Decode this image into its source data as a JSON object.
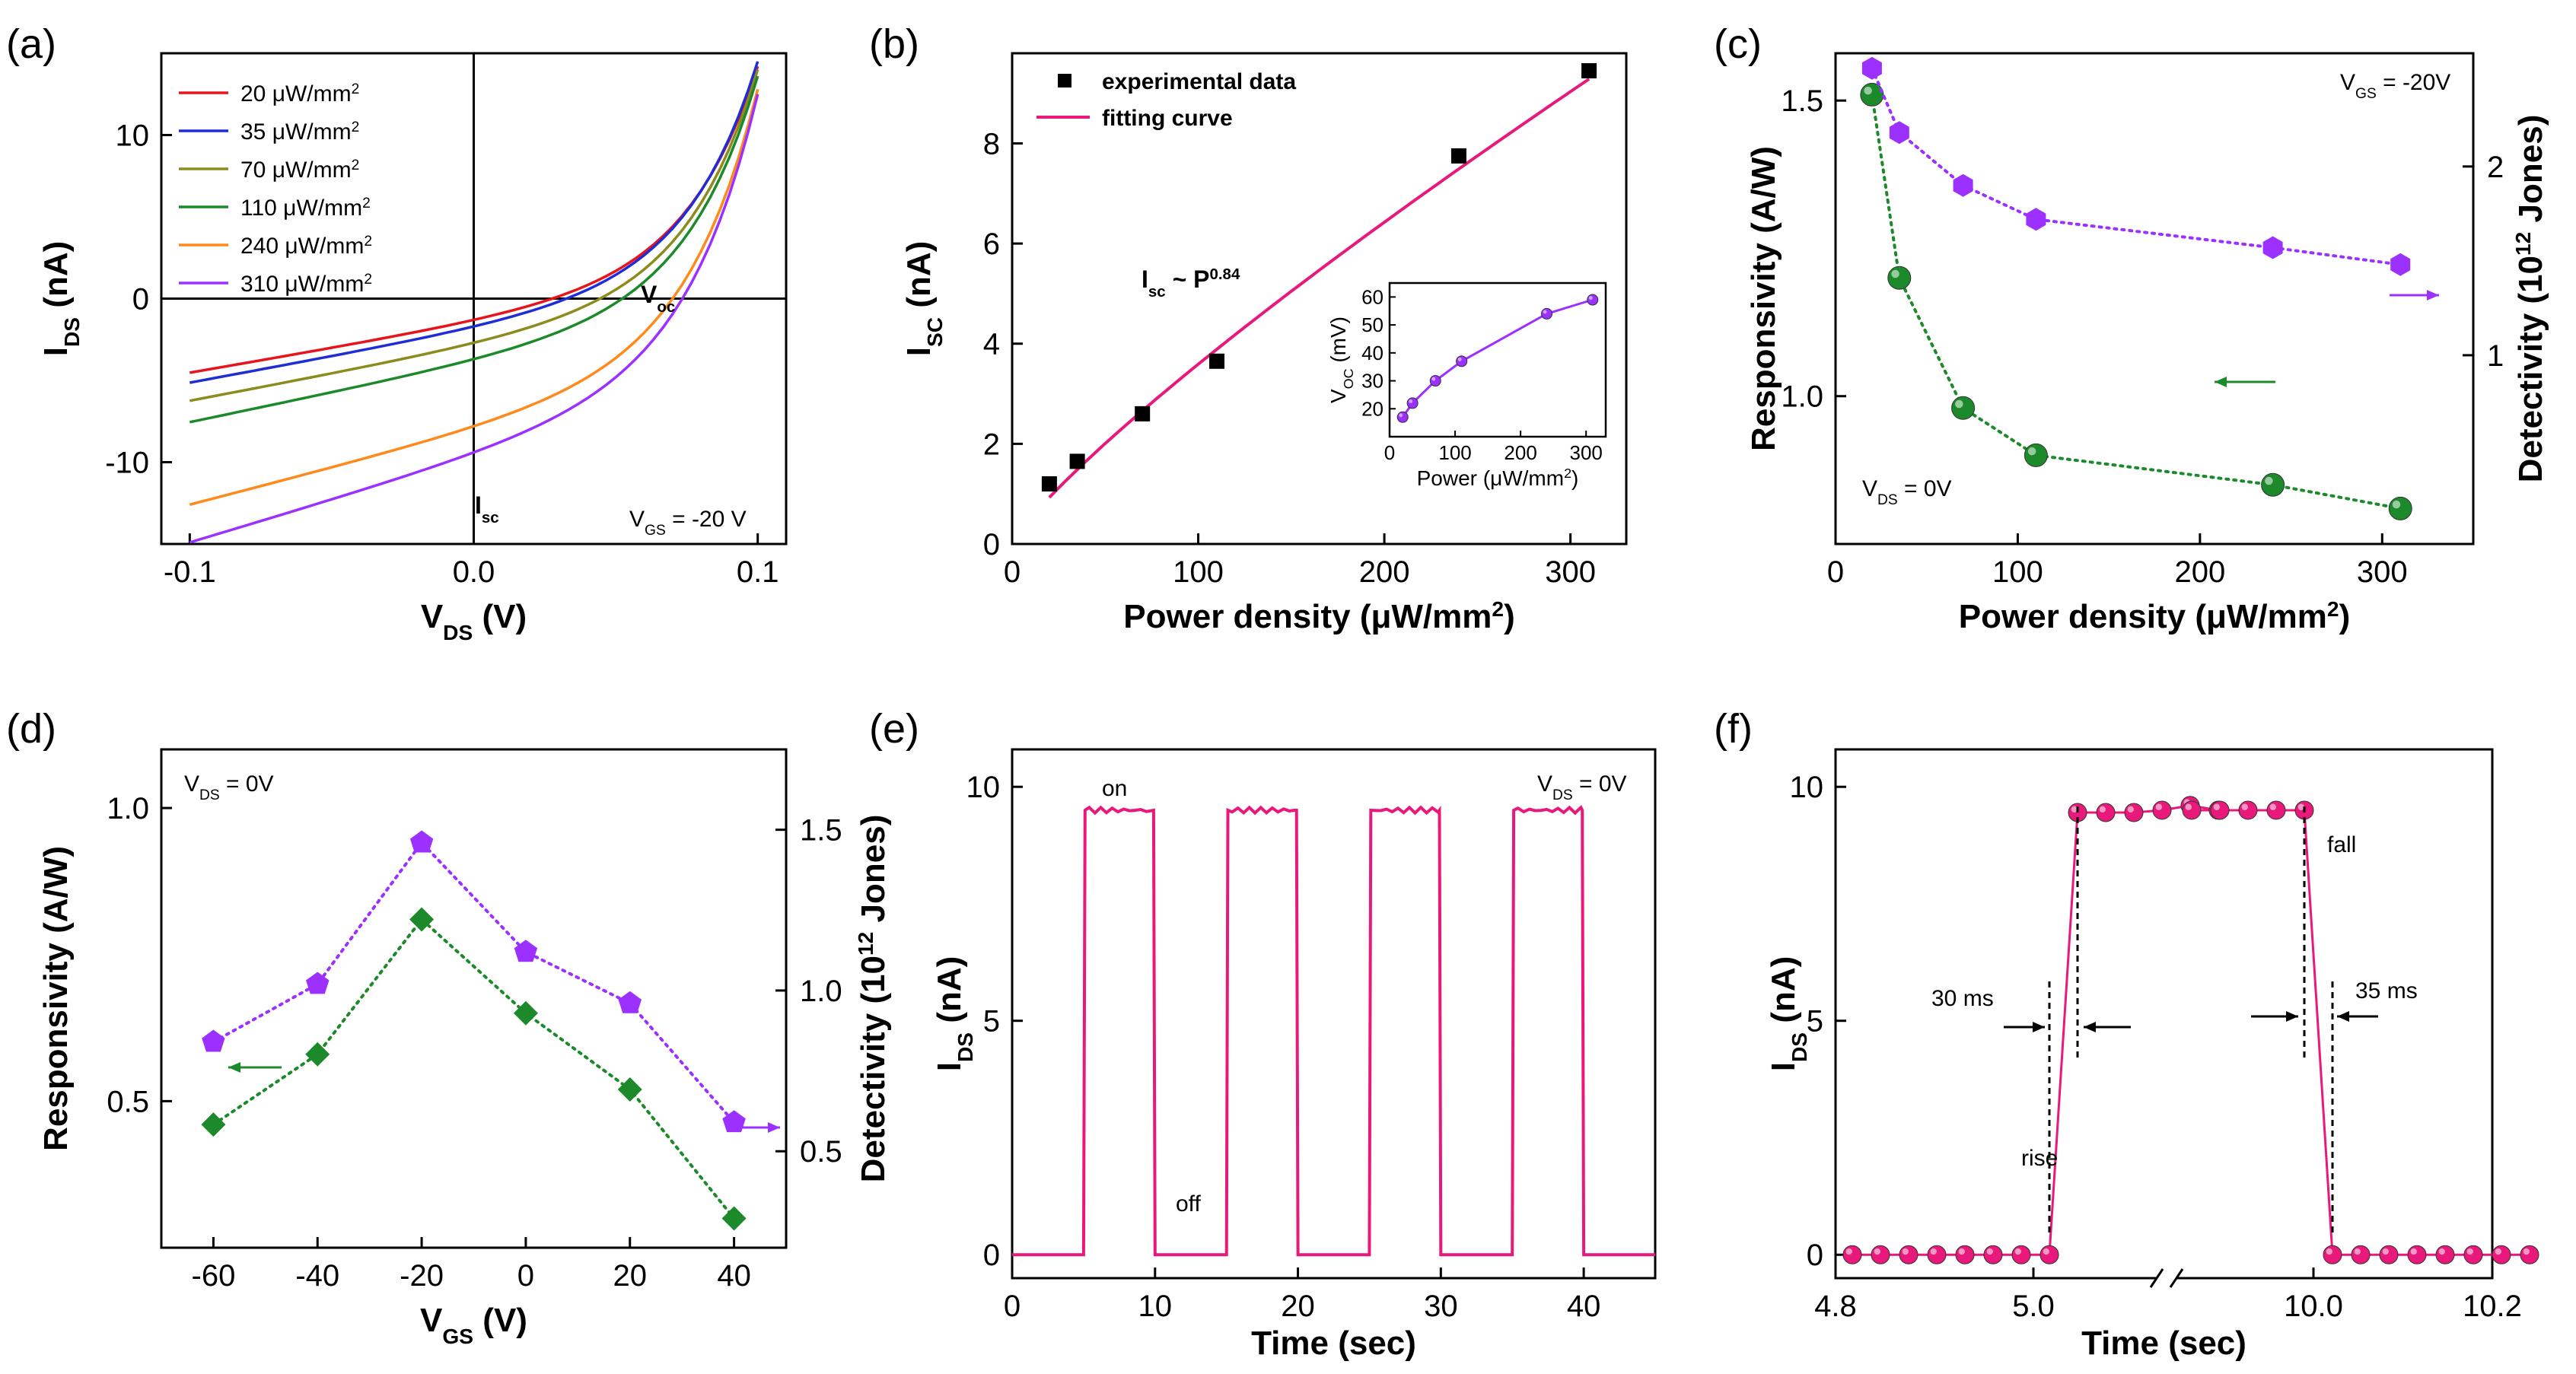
{
  "figure": {
    "panel_labels": [
      "(a)",
      "(b)",
      "(c)",
      "(d)",
      "(e)",
      "(f)"
    ]
  },
  "chart_data": [
    {
      "id": "a",
      "type": "line",
      "xlabel_main": "V",
      "xlabel_sub": "DS",
      "xlabel_unit": " (V)",
      "ylabel_main": "I",
      "ylabel_sub": "DS",
      "ylabel_unit": " (nA)",
      "xlim": [
        -0.11,
        0.11
      ],
      "ylim": [
        -15,
        15
      ],
      "xticks": [
        -0.1,
        0.0,
        0.1
      ],
      "xtick_labels": [
        "-0.1",
        "0.0",
        "0.1"
      ],
      "yticks": [
        -10,
        0,
        10
      ],
      "ytick_labels": [
        "-10",
        "0",
        "10"
      ],
      "grid": false,
      "legend_position": "top-left",
      "series": [
        {
          "name": "20",
          "unit": " μW/mm",
          "sup": "2",
          "color": "#e8141b",
          "isc": -1.3,
          "end": 14.2,
          "bias": -4.3
        },
        {
          "name": "35",
          "unit": " μW/mm",
          "sup": "2",
          "color": "#1f2dd6",
          "isc": -1.7,
          "end": 14.5,
          "bias": -4.9
        },
        {
          "name": "70",
          "unit": " μW/mm",
          "sup": "2",
          "color": "#8c8c1e",
          "isc": -2.7,
          "end": 14.0,
          "bias": -6.0
        },
        {
          "name": "110",
          "unit": " μW/mm",
          "sup": "2",
          "color": "#1c8a2a",
          "isc": -3.7,
          "end": 13.6,
          "bias": -7.3
        },
        {
          "name": "240",
          "unit": " μW/mm",
          "sup": "2",
          "color": "#ff8a1c",
          "isc": -7.8,
          "end": 12.8,
          "bias": -12.3
        },
        {
          "name": "310",
          "unit": " μW/mm",
          "sup": "2",
          "color": "#9b30ff",
          "isc": -9.4,
          "end": 12.5,
          "bias": -14.6
        }
      ],
      "annotations": {
        "voc_main": "V",
        "voc_sub": "oc",
        "isc_main": "I",
        "isc_sub": "sc",
        "vgs_main": "V",
        "vgs_sub": "GS",
        "vgs_value": " = -20 V"
      }
    },
    {
      "id": "b",
      "type": "scatter",
      "xlabel": "Power density (μW/mm",
      "xlabel_sup": "2",
      "xlabel_close": ")",
      "ylabel_main": "I",
      "ylabel_sub": "SC",
      "ylabel_unit": " (nA)",
      "xlim": [
        0,
        330
      ],
      "ylim": [
        0,
        9.8
      ],
      "xticks": [
        0,
        100,
        200,
        300
      ],
      "yticks": [
        0,
        2,
        4,
        6,
        8
      ],
      "x": [
        20,
        35,
        70,
        110,
        240,
        310
      ],
      "y": [
        1.2,
        1.65,
        2.6,
        3.65,
        7.75,
        9.45
      ],
      "legend": [
        "experimental data",
        "fitting curve"
      ],
      "fit_color": "#e8197a",
      "fit_label_main": "I",
      "fit_label_sub": "sc",
      "fit_label_mid": " ~ P",
      "fit_label_sup": "0.84",
      "inset": {
        "xlabel": "Power (μW/mm",
        "xlabel_sup": "2",
        "xlabel_close": ")",
        "ylabel_main": "V",
        "ylabel_sub": "OC",
        "ylabel_unit": " (mV)",
        "xticks": [
          0,
          100,
          200,
          300
        ],
        "yticks": [
          20,
          30,
          40,
          50,
          60
        ],
        "xlim": [
          0,
          330
        ],
        "ylim": [
          10,
          65
        ],
        "x": [
          20,
          35,
          70,
          110,
          240,
          310
        ],
        "y": [
          17,
          22,
          30,
          37,
          54,
          59
        ],
        "color": "#9b30ff"
      }
    },
    {
      "id": "c",
      "type": "scatter",
      "xlabel": "Power density (μW/mm",
      "xlabel_sup": "2",
      "xlabel_close": ")",
      "ylabel_left": "Responsivity (A/W)",
      "ylabel_right_pre": "Detectivity (10",
      "ylabel_right_sup": "12",
      "ylabel_right_post": " Jones)",
      "xlim": [
        0,
        350
      ],
      "ylim_left": [
        0.75,
        1.58
      ],
      "ylim_right": [
        0.0,
        2.6
      ],
      "xticks": [
        0,
        100,
        200,
        300
      ],
      "yticks_left": [
        1.0,
        1.5
      ],
      "yticks_left_labels": [
        "1.0",
        "1.5"
      ],
      "yticks_right": [
        1,
        2
      ],
      "yticks_right_labels": [
        "1",
        "2"
      ],
      "series": [
        {
          "name": "Responsivity",
          "axis": "left",
          "color": "#1c8a2a",
          "x": [
            20,
            35,
            70,
            110,
            240,
            310
          ],
          "y": [
            1.51,
            1.2,
            0.98,
            0.9,
            0.85,
            0.81
          ]
        },
        {
          "name": "Detectivity",
          "axis": "right",
          "color": "#9b30ff",
          "x": [
            20,
            35,
            70,
            110,
            240,
            310
          ],
          "y": [
            2.52,
            2.18,
            1.9,
            1.72,
            1.57,
            1.48
          ]
        }
      ],
      "annotations": {
        "vgs_main": "V",
        "vgs_sub": "GS",
        "vgs_value": " = -20V",
        "vds_main": "V",
        "vds_sub": "DS",
        "vds_value": " = 0V"
      }
    },
    {
      "id": "d",
      "type": "scatter",
      "xlabel_main": "V",
      "xlabel_sub": "GS",
      "xlabel_unit": " (V)",
      "ylabel_left": "Responsivity (A/W)",
      "ylabel_right_pre": "Detectivity (10",
      "ylabel_right_sup": "12",
      "ylabel_right_post": " Jones)",
      "xlim": [
        -70,
        50
      ],
      "ylim_left": [
        0.25,
        1.1
      ],
      "ylim_right": [
        0.2,
        1.75
      ],
      "xticks": [
        -60,
        -40,
        -20,
        0,
        20,
        40
      ],
      "yticks_left": [
        0.5,
        1.0
      ],
      "yticks_left_labels": [
        "0.5",
        "1.0"
      ],
      "yticks_right": [
        0.5,
        1.0,
        1.5
      ],
      "yticks_right_labels": [
        "0.5",
        "1.0",
        "1.5"
      ],
      "series": [
        {
          "name": "Responsivity",
          "axis": "left",
          "color": "#1c8a2a",
          "x": [
            -60,
            -40,
            -20,
            0,
            20,
            40
          ],
          "y": [
            0.46,
            0.58,
            0.81,
            0.65,
            0.52,
            0.3
          ]
        },
        {
          "name": "Detectivity",
          "axis": "right",
          "color": "#9b30ff",
          "x": [
            -60,
            -40,
            -20,
            0,
            20,
            40
          ],
          "y": [
            0.84,
            1.02,
            1.46,
            1.12,
            0.96,
            0.59
          ]
        }
      ],
      "annotations": {
        "vds_main": "V",
        "vds_sub": "DS",
        "vds_value": " = 0V"
      }
    },
    {
      "id": "e",
      "type": "line",
      "xlabel": "Time (sec)",
      "ylabel_main": "I",
      "ylabel_sub": "DS",
      "ylabel_unit": " (nA)",
      "xlim": [
        0,
        45
      ],
      "ylim": [
        -0.5,
        10.8
      ],
      "xticks": [
        0,
        10,
        20,
        30,
        40
      ],
      "yticks": [
        0,
        5,
        10
      ],
      "color": "#e8197a",
      "on_intervals": [
        [
          5,
          10
        ],
        [
          15,
          20
        ],
        [
          25,
          30
        ],
        [
          35,
          40
        ]
      ],
      "on_value": 9.5,
      "off_value": 0,
      "annotations": {
        "on": "on",
        "off": "off",
        "vds_main": "V",
        "vds_sub": "DS",
        "vds_value": " = 0V"
      }
    },
    {
      "id": "f",
      "type": "line",
      "xlabel": "Time (sec)",
      "ylabel_main": "I",
      "ylabel_sub": "DS",
      "ylabel_unit": " (nA)",
      "ylim": [
        -0.5,
        10.8
      ],
      "xtick_labels": [
        "4.8",
        "5.0",
        "10.0",
        "10.2"
      ],
      "yticks": [
        0,
        5,
        10
      ],
      "color": "#e8197a",
      "points_left": [
        0,
        0,
        0,
        0,
        0,
        0,
        0,
        0,
        9.45,
        9.45,
        9.45,
        9.5,
        9.6,
        9.5
      ],
      "points_right": [
        9.5,
        9.5,
        9.5,
        9.5,
        9.5,
        0,
        0,
        0,
        0,
        0,
        0,
        0,
        0
      ],
      "annotations": {
        "rise": "rise",
        "fall": "fall",
        "rise_time": "30 ms",
        "fall_time": "35 ms"
      }
    }
  ]
}
